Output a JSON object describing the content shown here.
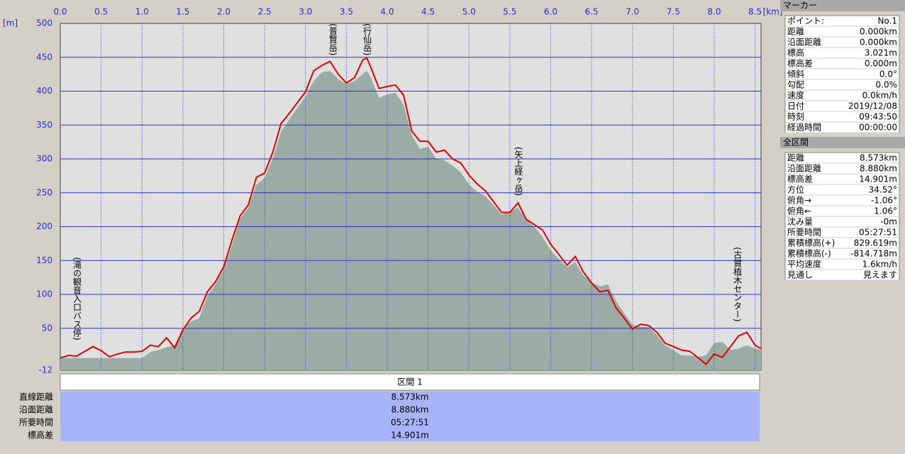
{
  "chart_data": {
    "type": "line",
    "x": [
      0,
      0.1,
      0.2,
      0.3,
      0.4,
      0.5,
      0.6,
      0.7,
      0.8,
      0.9,
      1.0,
      1.1,
      1.2,
      1.3,
      1.4,
      1.5,
      1.6,
      1.7,
      1.8,
      1.9,
      2.0,
      2.1,
      2.2,
      2.3,
      2.4,
      2.5,
      2.6,
      2.7,
      2.8,
      2.9,
      3.0,
      3.1,
      3.2,
      3.3,
      3.4,
      3.5,
      3.6,
      3.7,
      3.75,
      3.8,
      3.9,
      4.0,
      4.1,
      4.2,
      4.3,
      4.4,
      4.5,
      4.6,
      4.7,
      4.8,
      4.9,
      5.0,
      5.1,
      5.2,
      5.3,
      5.4,
      5.5,
      5.6,
      5.7,
      5.8,
      5.9,
      6.0,
      6.1,
      6.2,
      6.3,
      6.4,
      6.5,
      6.6,
      6.7,
      6.8,
      6.9,
      7.0,
      7.1,
      7.2,
      7.3,
      7.4,
      7.5,
      7.6,
      7.7,
      7.8,
      7.9,
      8.0,
      8.1,
      8.2,
      8.3,
      8.4,
      8.5,
      8.573
    ],
    "series": [
      {
        "color": "#9aaca5",
        "values": [
          6,
          6,
          6,
          6,
          6,
          6,
          6,
          6,
          6,
          6,
          6,
          15,
          18,
          22,
          25,
          50,
          60,
          65,
          98,
          115,
          138,
          172,
          212,
          228,
          262,
          272,
          300,
          340,
          358,
          375,
          392,
          415,
          428,
          430,
          418,
          410,
          415,
          425,
          430,
          420,
          390,
          395,
          398,
          380,
          335,
          315,
          318,
          300,
          298,
          290,
          280,
          262,
          252,
          245,
          232,
          218,
          222,
          228,
          210,
          200,
          185,
          165,
          152,
          140,
          148,
          128,
          118,
          112,
          115,
          90,
          72,
          55,
          52,
          52,
          40,
          25,
          18,
          10,
          10,
          8,
          10,
          28,
          30,
          18,
          20,
          25,
          20,
          18
        ]
      },
      {
        "color": "#e00000",
        "values": [
          6,
          10,
          9,
          16,
          23,
          17,
          8,
          12,
          15,
          15,
          16,
          25,
          23,
          36,
          21,
          48,
          65,
          75,
          104,
          119,
          141,
          180,
          216,
          232,
          273,
          279,
          310,
          352,
          367,
          383,
          399,
          430,
          438,
          444,
          425,
          412,
          420,
          446,
          449,
          435,
          404,
          407,
          409,
          394,
          341,
          326,
          326,
          310,
          313,
          300,
          294,
          276,
          263,
          253,
          237,
          221,
          221,
          235,
          211,
          203,
          195,
          174,
          159,
          143,
          156,
          133,
          117,
          104,
          106,
          80,
          65,
          49,
          56,
          54,
          44,
          28,
          23,
          18,
          16,
          7,
          -3,
          12,
          7,
          23,
          39,
          44,
          25,
          20
        ]
      }
    ],
    "xlim": [
      0,
      8.573
    ],
    "xticks": [
      {
        "value": 0,
        "label": "0.0"
      },
      0.5,
      {
        "value": 1,
        "label": "1.0"
      },
      1.5,
      {
        "value": 2,
        "label": "2.0"
      },
      2.5,
      {
        "value": 3,
        "label": "3.0"
      },
      3.5,
      {
        "value": 4,
        "label": "4.0"
      },
      4.5,
      {
        "value": 5,
        "label": "5.0"
      },
      5.5,
      {
        "value": 6,
        "label": "6.0"
      },
      6.5,
      {
        "value": 7,
        "label": "7.0"
      },
      7.5,
      {
        "value": 8,
        "label": "8.0"
      },
      8.5
    ],
    "x_unit": "[km]",
    "ylim": [
      -12,
      500
    ],
    "yticks": [
      -12,
      50,
      100,
      150,
      200,
      250,
      300,
      350,
      400,
      450,
      500
    ],
    "y_unit": "[m]",
    "grid": true,
    "annotations": [
      {
        "text": "(滝の観音入口バス停)",
        "x": 0.2,
        "y": 155
      },
      {
        "text": "(普賢岳)",
        "x": 3.33,
        "y": 500
      },
      {
        "text": "(行仙岳)",
        "x": 3.75,
        "y": 500
      },
      {
        "text": "(矢上経ヶ岳)",
        "x": 5.6,
        "y": 318
      },
      {
        "text": "(古賀植木センター)",
        "x": 8.28,
        "y": 170
      }
    ]
  },
  "marker_panel": {
    "title": "マーカー",
    "rows": [
      [
        "ポイント:",
        "No.1"
      ],
      [
        "距離",
        "0.000km"
      ],
      [
        "沿面距離",
        "0.000km"
      ],
      [
        "標高",
        "3.021m"
      ],
      [
        "標高差",
        "0.000m"
      ],
      [
        "傾斜",
        "0.0°"
      ],
      [
        "勾配",
        "0.0%"
      ],
      [
        "速度",
        "0.0km/h"
      ],
      [
        "日付",
        "2019/12/08"
      ],
      [
        "時刻",
        "09:43:50"
      ],
      [
        "経過時間",
        "00:00:00"
      ]
    ]
  },
  "total_panel": {
    "title": "全区間",
    "rows": [
      [
        "距離",
        "8.573km"
      ],
      [
        "沿面距離",
        "8.880km"
      ],
      [
        "標高差",
        "14.901m"
      ],
      [
        "方位",
        "34.52°"
      ],
      [
        "俯角→",
        "-1.06°"
      ],
      [
        "俯角←",
        "1.06°"
      ],
      [
        "沈み量",
        "-0m"
      ],
      [
        "所要時間",
        "05:27:51"
      ],
      [
        "累積標高(+)",
        "829.619m"
      ],
      [
        "累積標高(-)",
        "-814.718m"
      ],
      [
        "平均速度",
        "1.6km/h"
      ],
      [
        "見通し",
        "見えます"
      ]
    ]
  },
  "section_table": {
    "header": "区間 1",
    "rows": [
      [
        "直線距離",
        "8.573km"
      ],
      [
        "沿面距離",
        "8.880km"
      ],
      [
        "所要時間",
        "05:27:51"
      ],
      [
        "標高差",
        "14.901m"
      ]
    ]
  }
}
